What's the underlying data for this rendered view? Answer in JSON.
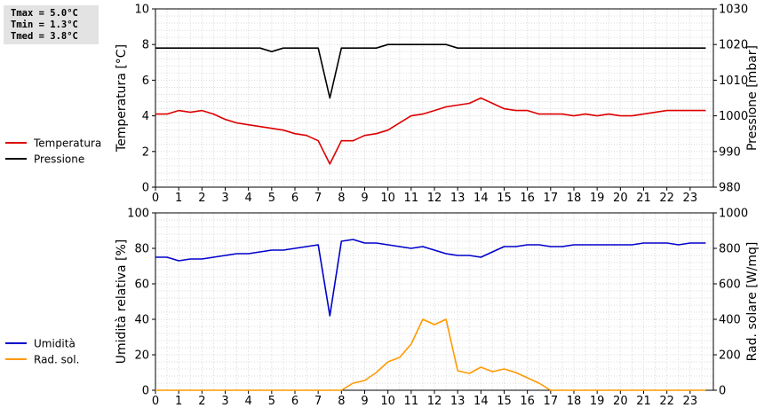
{
  "stats": [
    {
      "label": "Tmax",
      "value": "5.0°C"
    },
    {
      "label": "Tmin",
      "value": "1.3°C"
    },
    {
      "label": "Tmed",
      "value": "3.8°C"
    }
  ],
  "chart_data": [
    {
      "type": "line",
      "xlabel": "",
      "ylabel_left": "Temperatura [°C]",
      "ylabel_right": "Pressione [mbar]",
      "xlim": [
        0,
        24
      ],
      "x_ticks": [
        0,
        1,
        2,
        3,
        4,
        5,
        6,
        7,
        8,
        9,
        10,
        11,
        12,
        13,
        14,
        15,
        16,
        17,
        18,
        19,
        20,
        21,
        22,
        23
      ],
      "ylim_left": [
        0,
        10
      ],
      "y_ticks_left": [
        0,
        2,
        4,
        6,
        8,
        10
      ],
      "ylim_right": [
        980,
        1030
      ],
      "y_ticks_right": [
        980,
        990,
        1000,
        1010,
        1020,
        1030
      ],
      "grid": true,
      "legend_position": "left-outside",
      "series": [
        {
          "name": "Temperatura",
          "axis": "left",
          "color": "#dd0000",
          "x": [
            0,
            0.5,
            1,
            1.5,
            2,
            2.5,
            3,
            3.5,
            4,
            4.5,
            5,
            5.5,
            6,
            6.5,
            7,
            7.5,
            8,
            8.5,
            9,
            9.5,
            10,
            10.5,
            11,
            11.5,
            12,
            12.5,
            13,
            13.5,
            14,
            14.5,
            15,
            15.5,
            16,
            16.5,
            17,
            17.5,
            18,
            18.5,
            19,
            19.5,
            20,
            20.5,
            21,
            21.5,
            22,
            22.5,
            23,
            23.67
          ],
          "values": [
            4.1,
            4.1,
            4.3,
            4.2,
            4.3,
            4.1,
            3.8,
            3.6,
            3.5,
            3.4,
            3.3,
            3.2,
            3.0,
            2.9,
            2.6,
            1.3,
            2.6,
            2.6,
            2.9,
            3.0,
            3.2,
            3.6,
            4.0,
            4.1,
            4.3,
            4.5,
            4.6,
            4.7,
            5.0,
            4.7,
            4.4,
            4.3,
            4.3,
            4.1,
            4.1,
            4.1,
            4.0,
            4.1,
            4.0,
            4.1,
            4.0,
            4.0,
            4.1,
            4.2,
            4.3,
            4.3,
            4.3,
            4.3
          ]
        },
        {
          "name": "Pressione",
          "axis": "right",
          "color": "#000000",
          "x": [
            0,
            0.5,
            1,
            1.5,
            2,
            2.5,
            3,
            3.5,
            4,
            4.5,
            5,
            5.5,
            6,
            6.5,
            7,
            7.5,
            8,
            8.5,
            9,
            9.5,
            10,
            10.5,
            11,
            11.5,
            12,
            12.5,
            13,
            13.5,
            14,
            14.5,
            15,
            15.5,
            16,
            16.5,
            17,
            17.5,
            18,
            18.5,
            19,
            19.5,
            20,
            20.5,
            21,
            21.5,
            22,
            22.5,
            23,
            23.67
          ],
          "values": [
            1019,
            1019,
            1019,
            1019,
            1019,
            1019,
            1019,
            1019,
            1019,
            1019,
            1018,
            1019,
            1019,
            1019,
            1019,
            1005,
            1019,
            1019,
            1019,
            1019,
            1020,
            1020,
            1020,
            1020,
            1020,
            1020,
            1019,
            1019,
            1019,
            1019,
            1019,
            1019,
            1019,
            1019,
            1019,
            1019,
            1019,
            1019,
            1019,
            1019,
            1019,
            1019,
            1019,
            1019,
            1019,
            1019,
            1019,
            1019
          ]
        }
      ]
    },
    {
      "type": "line",
      "xlabel": "",
      "ylabel_left": "Umidità relativa [%]",
      "ylabel_right": "Rad. solare [W/mq]",
      "xlim": [
        0,
        24
      ],
      "x_ticks": [
        0,
        1,
        2,
        3,
        4,
        5,
        6,
        7,
        8,
        9,
        10,
        11,
        12,
        13,
        14,
        15,
        16,
        17,
        18,
        19,
        20,
        21,
        22,
        23
      ],
      "ylim_left": [
        0,
        100
      ],
      "y_ticks_left": [
        0,
        20,
        40,
        60,
        80,
        100
      ],
      "ylim_right": [
        0,
        1000
      ],
      "y_ticks_right": [
        0,
        200,
        400,
        600,
        800,
        1000
      ],
      "grid": true,
      "legend_position": "left-outside",
      "series": [
        {
          "name": "Umidità",
          "axis": "left",
          "color": "#0000cc",
          "x": [
            0,
            0.5,
            1,
            1.5,
            2,
            2.5,
            3,
            3.5,
            4,
            4.5,
            5,
            5.5,
            6,
            6.5,
            7,
            7.5,
            8,
            8.5,
            9,
            9.5,
            10,
            10.5,
            11,
            11.5,
            12,
            12.5,
            13,
            13.5,
            14,
            14.5,
            15,
            15.5,
            16,
            16.5,
            17,
            17.5,
            18,
            18.5,
            19,
            19.5,
            20,
            20.5,
            21,
            21.5,
            22,
            22.5,
            23,
            23.67
          ],
          "values": [
            75,
            75,
            73,
            74,
            74,
            75,
            76,
            77,
            77,
            78,
            79,
            79,
            80,
            81,
            82,
            42,
            84,
            85,
            83,
            83,
            82,
            81,
            80,
            81,
            79,
            77,
            76,
            76,
            75,
            78,
            81,
            81,
            82,
            82,
            81,
            81,
            82,
            82,
            82,
            82,
            82,
            82,
            83,
            83,
            83,
            82,
            83,
            83
          ]
        },
        {
          "name": "Rad. sol.",
          "axis": "right",
          "color": "#ff9900",
          "x": [
            0,
            0.5,
            1,
            1.5,
            2,
            2.5,
            3,
            3.5,
            4,
            4.5,
            5,
            5.5,
            6,
            6.5,
            7,
            7.5,
            8,
            8.5,
            9,
            9.5,
            10,
            10.5,
            11,
            11.5,
            12,
            12.5,
            13,
            13.5,
            14,
            14.5,
            15,
            15.5,
            16,
            16.5,
            17,
            17.5,
            18,
            18.5,
            19,
            19.5,
            20,
            20.5,
            21,
            21.5,
            22,
            22.5,
            23,
            23.67
          ],
          "values": [
            0,
            0,
            0,
            0,
            0,
            0,
            0,
            0,
            0,
            0,
            0,
            0,
            0,
            0,
            0,
            0,
            0,
            40,
            55,
            100,
            160,
            185,
            260,
            400,
            370,
            400,
            110,
            95,
            130,
            105,
            120,
            100,
            70,
            40,
            0,
            0,
            0,
            0,
            0,
            0,
            0,
            0,
            0,
            0,
            0,
            0,
            0,
            0
          ]
        }
      ]
    }
  ]
}
